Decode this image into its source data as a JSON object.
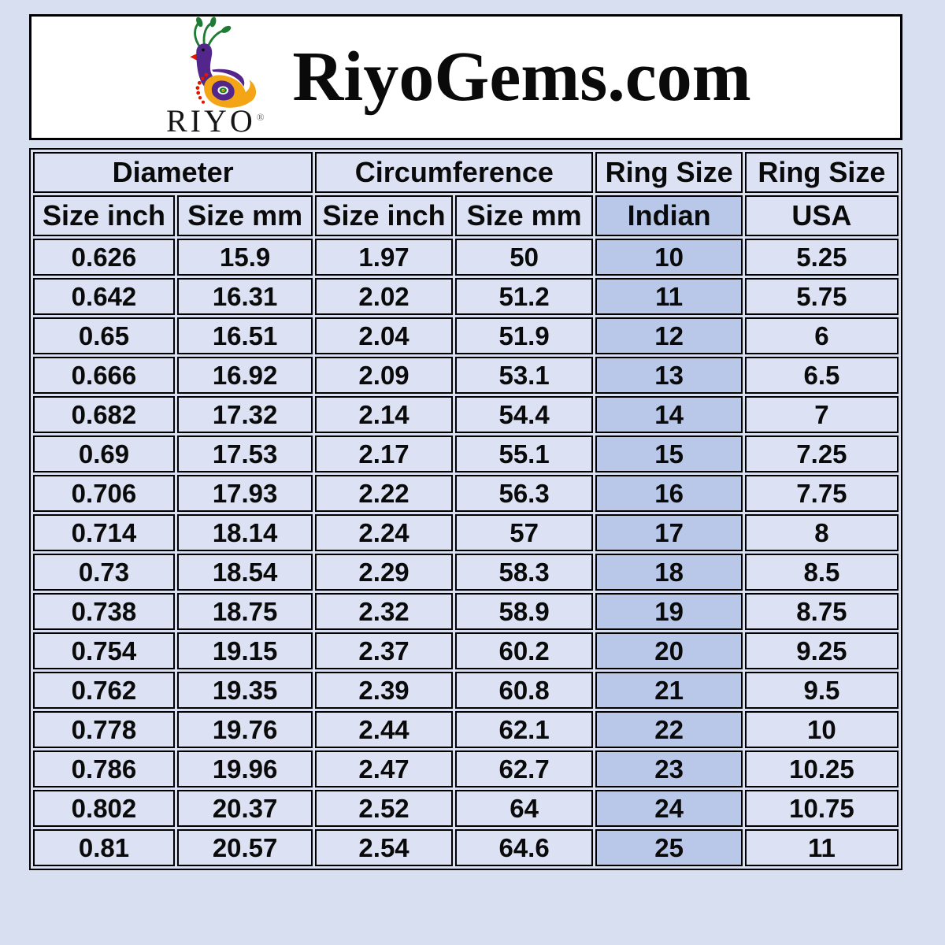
{
  "colors": {
    "page_bg": "#d8dff1",
    "cell_bg": "#dce2f3",
    "highlight_bg": "#b9c8e8",
    "border": "#000000",
    "logo_purple": "#53268c",
    "logo_green": "#1e7b33",
    "logo_orange": "#f4a516",
    "logo_red": "#e01800",
    "logo_yellow": "#ffe000"
  },
  "header": {
    "brand": "RiyoGems.com",
    "logo_text": "RIYO",
    "registered_mark": "®",
    "logo_icon": "peacock-paisley-icon"
  },
  "table": {
    "groups": [
      {
        "label": "Diameter",
        "span": 2
      },
      {
        "label": "Circumference",
        "span": 2
      },
      {
        "label": "Ring Size",
        "span": 1
      },
      {
        "label": "Ring Size",
        "span": 1
      }
    ],
    "subheaders": [
      "Size inch",
      "Size mm",
      "Size inch",
      "Size mm",
      "Indian",
      "USA"
    ],
    "highlight_column": 4,
    "rows": [
      [
        "0.626",
        "15.9",
        "1.97",
        "50",
        "10",
        "5.25"
      ],
      [
        "0.642",
        "16.31",
        "2.02",
        "51.2",
        "11",
        "5.75"
      ],
      [
        "0.65",
        "16.51",
        "2.04",
        "51.9",
        "12",
        "6"
      ],
      [
        "0.666",
        "16.92",
        "2.09",
        "53.1",
        "13",
        "6.5"
      ],
      [
        "0.682",
        "17.32",
        "2.14",
        "54.4",
        "14",
        "7"
      ],
      [
        "0.69",
        "17.53",
        "2.17",
        "55.1",
        "15",
        "7.25"
      ],
      [
        "0.706",
        "17.93",
        "2.22",
        "56.3",
        "16",
        "7.75"
      ],
      [
        "0.714",
        "18.14",
        "2.24",
        "57",
        "17",
        "8"
      ],
      [
        "0.73",
        "18.54",
        "2.29",
        "58.3",
        "18",
        "8.5"
      ],
      [
        "0.738",
        "18.75",
        "2.32",
        "58.9",
        "19",
        "8.75"
      ],
      [
        "0.754",
        "19.15",
        "2.37",
        "60.2",
        "20",
        "9.25"
      ],
      [
        "0.762",
        "19.35",
        "2.39",
        "60.8",
        "21",
        "9.5"
      ],
      [
        "0.778",
        "19.76",
        "2.44",
        "62.1",
        "22",
        "10"
      ],
      [
        "0.786",
        "19.96",
        "2.47",
        "62.7",
        "23",
        "10.25"
      ],
      [
        "0.802",
        "20.37",
        "2.52",
        "64",
        "24",
        "10.75"
      ],
      [
        "0.81",
        "20.57",
        "2.54",
        "64.6",
        "25",
        "11"
      ]
    ]
  },
  "chart_data": {
    "type": "table",
    "title": "RiyoGems.com ring size conversion chart",
    "column_groups": [
      "Diameter",
      "Diameter",
      "Circumference",
      "Circumference",
      "Ring Size",
      "Ring Size"
    ],
    "columns": [
      "Diameter Size inch",
      "Diameter Size mm",
      "Circumference Size inch",
      "Circumference Size mm",
      "Ring Size Indian",
      "Ring Size USA"
    ],
    "rows": [
      [
        0.626,
        15.9,
        1.97,
        50,
        10,
        5.25
      ],
      [
        0.642,
        16.31,
        2.02,
        51.2,
        11,
        5.75
      ],
      [
        0.65,
        16.51,
        2.04,
        51.9,
        12,
        6
      ],
      [
        0.666,
        16.92,
        2.09,
        53.1,
        13,
        6.5
      ],
      [
        0.682,
        17.32,
        2.14,
        54.4,
        14,
        7
      ],
      [
        0.69,
        17.53,
        2.17,
        55.1,
        15,
        7.25
      ],
      [
        0.706,
        17.93,
        2.22,
        56.3,
        16,
        7.75
      ],
      [
        0.714,
        18.14,
        2.24,
        57,
        17,
        8
      ],
      [
        0.73,
        18.54,
        2.29,
        58.3,
        18,
        8.5
      ],
      [
        0.738,
        18.75,
        2.32,
        58.9,
        19,
        8.75
      ],
      [
        0.754,
        19.15,
        2.37,
        60.2,
        20,
        9.25
      ],
      [
        0.762,
        19.35,
        2.39,
        60.8,
        21,
        9.5
      ],
      [
        0.778,
        19.76,
        2.44,
        62.1,
        22,
        10
      ],
      [
        0.786,
        19.96,
        2.47,
        62.7,
        23,
        10.25
      ],
      [
        0.802,
        20.37,
        2.52,
        64,
        24,
        10.75
      ],
      [
        0.81,
        20.57,
        2.54,
        64.6,
        25,
        11
      ]
    ]
  }
}
